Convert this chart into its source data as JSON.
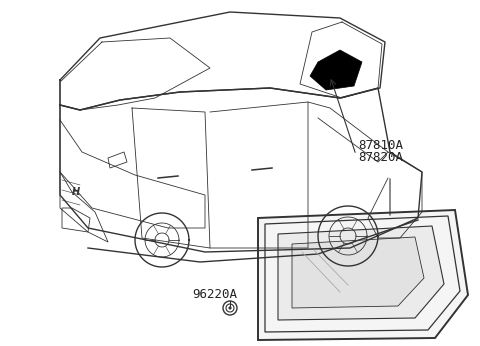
{
  "background_color": "#ffffff",
  "car_outline_color": "#333333",
  "label_87810A": "87810A",
  "label_87820A": "87820A",
  "label_96220A": "96220A",
  "label_color": "#222222",
  "label_fontsize": 9,
  "arrow_color": "#333333"
}
